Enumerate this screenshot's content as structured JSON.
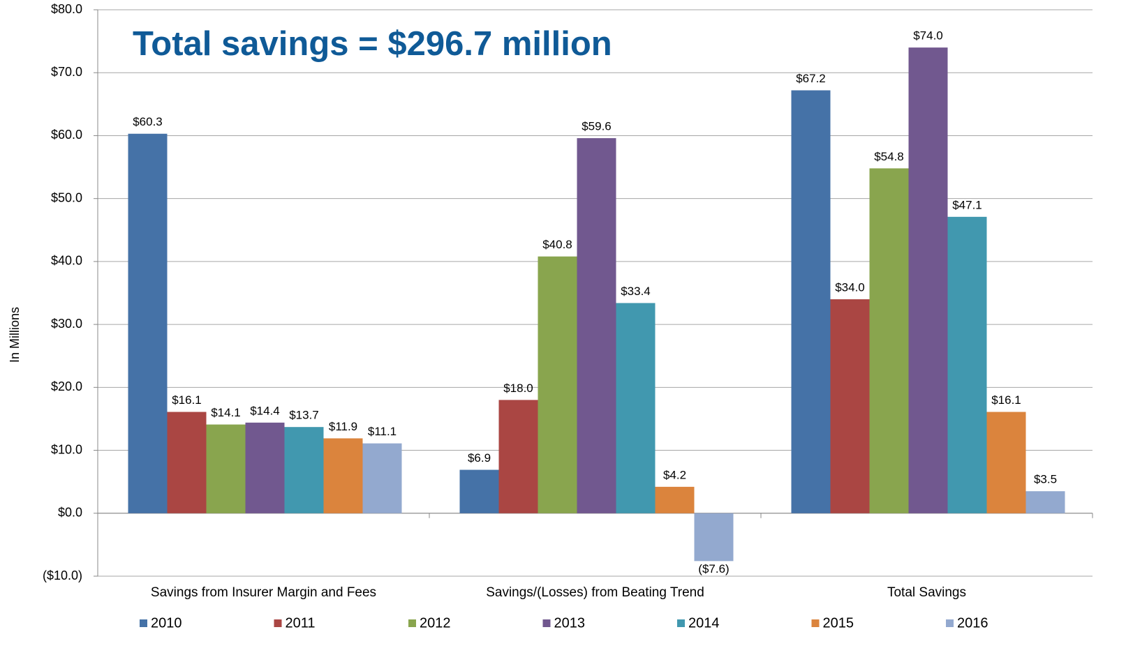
{
  "chart_data": {
    "type": "bar",
    "title": "Total savings = $296.7 million",
    "y_label": "In Millions",
    "categories": [
      "Savings from Insurer Margin and Fees",
      "Savings/(Losses) from Beating Trend",
      "Total Savings"
    ],
    "series": [
      {
        "name": "2010",
        "color": "#4572a7",
        "values": [
          60.3,
          6.9,
          67.2
        ],
        "value_labels": [
          "$60.3",
          "$6.9",
          "$67.2"
        ]
      },
      {
        "name": "2011",
        "color": "#aa4643",
        "values": [
          16.1,
          18.0,
          34.0
        ],
        "value_labels": [
          "$16.1",
          "$18.0",
          "$34.0"
        ]
      },
      {
        "name": "2012",
        "color": "#89a54e",
        "values": [
          14.1,
          40.8,
          54.8
        ],
        "value_labels": [
          "$14.1",
          "$40.8",
          "$54.8"
        ]
      },
      {
        "name": "2013",
        "color": "#71588f",
        "values": [
          14.4,
          59.6,
          74.0
        ],
        "value_labels": [
          "$14.4",
          "$59.6",
          "$74.0"
        ]
      },
      {
        "name": "2014",
        "color": "#4198af",
        "values": [
          13.7,
          33.4,
          47.1
        ],
        "value_labels": [
          "$13.7",
          "$33.4",
          "$47.1"
        ]
      },
      {
        "name": "2015",
        "color": "#db843d",
        "values": [
          11.9,
          4.2,
          16.1
        ],
        "value_labels": [
          "$11.9",
          "$4.2",
          "$16.1"
        ]
      },
      {
        "name": "2016",
        "color": "#93a9cf",
        "values": [
          11.1,
          -7.6,
          3.5
        ],
        "value_labels": [
          "$11.1",
          "($7.6)",
          "$3.5"
        ]
      }
    ],
    "ylim": [
      -10,
      80
    ],
    "yticks": [
      {
        "value": -10,
        "label": "($10.0)"
      },
      {
        "value": 0,
        "label": "$0.0"
      },
      {
        "value": 10,
        "label": "$10.0"
      },
      {
        "value": 20,
        "label": "$20.0"
      },
      {
        "value": 30,
        "label": "$30.0"
      },
      {
        "value": 40,
        "label": "$40.0"
      },
      {
        "value": 50,
        "label": "$50.0"
      },
      {
        "value": 60,
        "label": "$60.0"
      },
      {
        "value": 70,
        "label": "$70.0"
      },
      {
        "value": 80,
        "label": "$80.0"
      }
    ],
    "grid": true,
    "legend": "bottom"
  }
}
